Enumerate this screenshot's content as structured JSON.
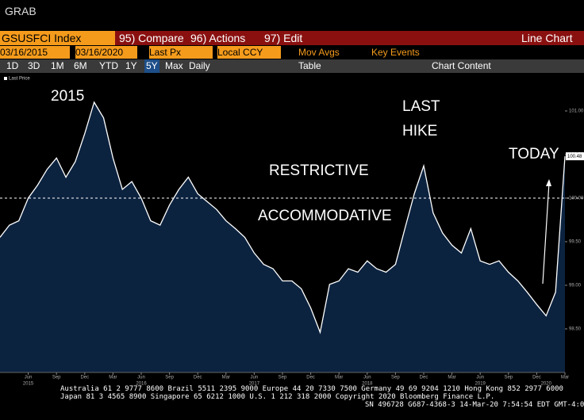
{
  "ui": {
    "header": "GRAB",
    "security": "GSUSFCI Index",
    "compare": "95) Compare",
    "actions": "96) Actions",
    "edit": "97) Edit",
    "view": "Line Chart",
    "start_date": "03/16/2015",
    "end_date": "03/16/2020",
    "field": "Last Px",
    "currency": "Local CCY",
    "mov_avgs": "Mov Avgs",
    "key_events": "Key Events",
    "ranges": [
      "1D",
      "3D",
      "1M",
      "6M",
      "YTD",
      "1Y",
      "5Y",
      "Max",
      "Daily"
    ],
    "table": "Table",
    "chart_content": "Chart Content",
    "footer": [
      "Australia 61 2 9777 8600 Brazil 5511 2395 9000 Europe 44 20 7330 7500 Germany 49 69 9204 1210 Hong Kong 852 2977 6000",
      "Japan 81 3 4565 8900      Singapore 65 6212 1000      U.S. 1 212 318 2000          Copyright 2020 Bloomberg Finance L.P.",
      "SN 496728 G687-4368-3 14-Mar-20  7:54:54 EDT  GMT-4:00"
    ]
  },
  "chart_data": {
    "type": "line",
    "x": [
      "2015-03",
      "2015-04",
      "2015-05",
      "2015-06",
      "2015-07",
      "2015-08",
      "2015-09",
      "2015-10",
      "2015-11",
      "2015-12",
      "2016-01",
      "2016-02",
      "2016-03",
      "2016-04",
      "2016-05",
      "2016-06",
      "2016-07",
      "2016-08",
      "2016-09",
      "2016-10",
      "2016-11",
      "2016-12",
      "2017-01",
      "2017-02",
      "2017-03",
      "2017-04",
      "2017-05",
      "2017-06",
      "2017-07",
      "2017-08",
      "2017-09",
      "2017-10",
      "2017-11",
      "2017-12",
      "2018-01",
      "2018-02",
      "2018-03",
      "2018-04",
      "2018-05",
      "2018-06",
      "2018-07",
      "2018-08",
      "2018-09",
      "2018-10",
      "2018-11",
      "2018-12",
      "2019-01",
      "2019-02",
      "2019-03",
      "2019-04",
      "2019-05",
      "2019-06",
      "2019-07",
      "2019-08",
      "2019-09",
      "2019-10",
      "2019-11",
      "2019-12",
      "2020-01",
      "2020-02",
      "2020-03"
    ],
    "series": [
      {
        "name": "Last Price",
        "color": "#ffffff",
        "fill": "#0c2340",
        "values": [
          99.55,
          99.69,
          99.74,
          100.0,
          100.15,
          100.33,
          100.46,
          100.24,
          100.42,
          100.74,
          101.1,
          100.92,
          100.46,
          100.1,
          100.19,
          100.0,
          99.74,
          99.69,
          99.92,
          100.1,
          100.24,
          100.05,
          99.96,
          99.87,
          99.74,
          99.65,
          99.55,
          99.37,
          99.24,
          99.19,
          99.05,
          99.05,
          98.96,
          98.74,
          98.46,
          99.01,
          99.05,
          99.19,
          99.15,
          99.28,
          99.19,
          99.15,
          99.24,
          99.65,
          100.05,
          100.37,
          99.83,
          99.6,
          99.46,
          99.37,
          99.65,
          99.28,
          99.24,
          99.28,
          99.15,
          99.05,
          98.92,
          98.78,
          98.65,
          98.92,
          100.48
        ]
      }
    ],
    "last_label": {
      "value": 100.48,
      "label": "100.48"
    },
    "reference_line": 100,
    "ylim": [
      98.0,
      101.3
    ],
    "yticks": [
      {
        "value": 98.5,
        "label": "98.50"
      },
      {
        "value": 99,
        "label": "99.00"
      },
      {
        "value": 99.5,
        "label": "99.50"
      },
      {
        "value": 100,
        "label": "100.00"
      },
      {
        "value": 100.5,
        "label": "100.50"
      },
      {
        "value": 101,
        "label": "101.00"
      }
    ],
    "xticks": [
      {
        "value": "2015-06",
        "label": "Jun"
      },
      {
        "value": "2015-09",
        "label": "Sep"
      },
      {
        "value": "2015-12",
        "label": "Dec"
      },
      {
        "value": "2016-03",
        "label": "Mar"
      },
      {
        "value": "2016-06",
        "label": "Jun"
      },
      {
        "value": "2016-09",
        "label": "Sep"
      },
      {
        "value": "2016-12",
        "label": "Dec"
      },
      {
        "value": "2017-03",
        "label": "Mar"
      },
      {
        "value": "2017-06",
        "label": "Jun"
      },
      {
        "value": "2017-09",
        "label": "Sep"
      },
      {
        "value": "2017-12",
        "label": "Dec"
      },
      {
        "value": "2018-03",
        "label": "Mar"
      },
      {
        "value": "2018-06",
        "label": "Jun"
      },
      {
        "value": "2018-09",
        "label": "Sep"
      },
      {
        "value": "2018-12",
        "label": "Dec"
      },
      {
        "value": "2019-03",
        "label": "Mar"
      },
      {
        "value": "2019-06",
        "label": "Jun"
      },
      {
        "value": "2019-09",
        "label": "Sep"
      },
      {
        "value": "2019-12",
        "label": "Dec"
      },
      {
        "value": "2020-03",
        "label": "Mar"
      }
    ],
    "year_labels": [
      {
        "value": "2015-06",
        "label": "2015"
      },
      {
        "value": "2016-06",
        "label": "2016"
      },
      {
        "value": "2017-06",
        "label": "2017"
      },
      {
        "value": "2018-06",
        "label": "2018"
      },
      {
        "value": "2019-06",
        "label": "2019"
      },
      {
        "value": "2020-01",
        "label": "2020"
      }
    ],
    "annotations": [
      "2015",
      "LAST",
      "HIKE",
      "RESTRICTIVE",
      "ACCOMMODATIVE",
      "TODAY"
    ]
  }
}
